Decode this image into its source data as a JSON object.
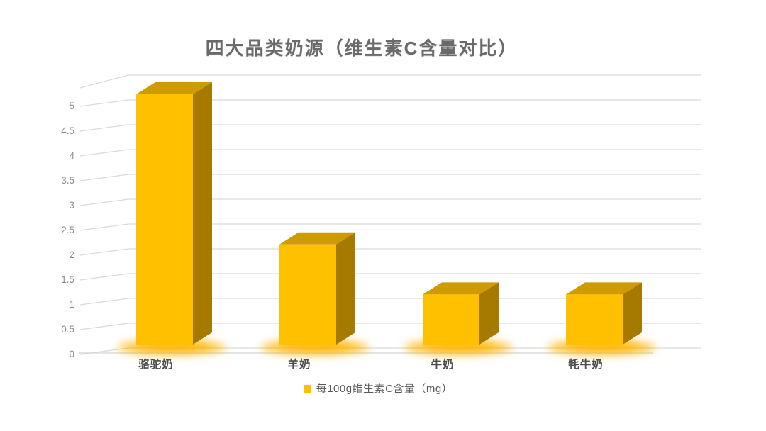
{
  "chart_data": {
    "type": "bar",
    "variant": "3d-column",
    "title": "四大品类奶源（维生素C含量对比）",
    "categories": [
      "骆驼奶",
      "羊奶",
      "牛奶",
      "牦牛奶"
    ],
    "series": [
      {
        "name": "每100g维生素C含量（mg）",
        "values": [
          5,
          2,
          1,
          1
        ]
      }
    ],
    "xlabel": "",
    "ylabel": "",
    "ylim": [
      0,
      5
    ],
    "ytick_step": 0.5,
    "yticks": [
      "0",
      "0.5",
      "1",
      "1.5",
      "2",
      "2.5",
      "3",
      "3.5",
      "4",
      "4.5",
      "5"
    ],
    "grid": true,
    "legend_position": "bottom",
    "colors": {
      "bar_front": "#FFC000",
      "bar_top": "#CE9B00",
      "bar_side": "#A67900",
      "glow": "#FFB400",
      "gridline": "#D9D9D9",
      "floor_line": "#D4D4D4",
      "axis_text": "#8C8C8C",
      "category_text": "#4D4D4D",
      "title_text": "#6A6A6A",
      "background": "#FFFFFF"
    }
  }
}
